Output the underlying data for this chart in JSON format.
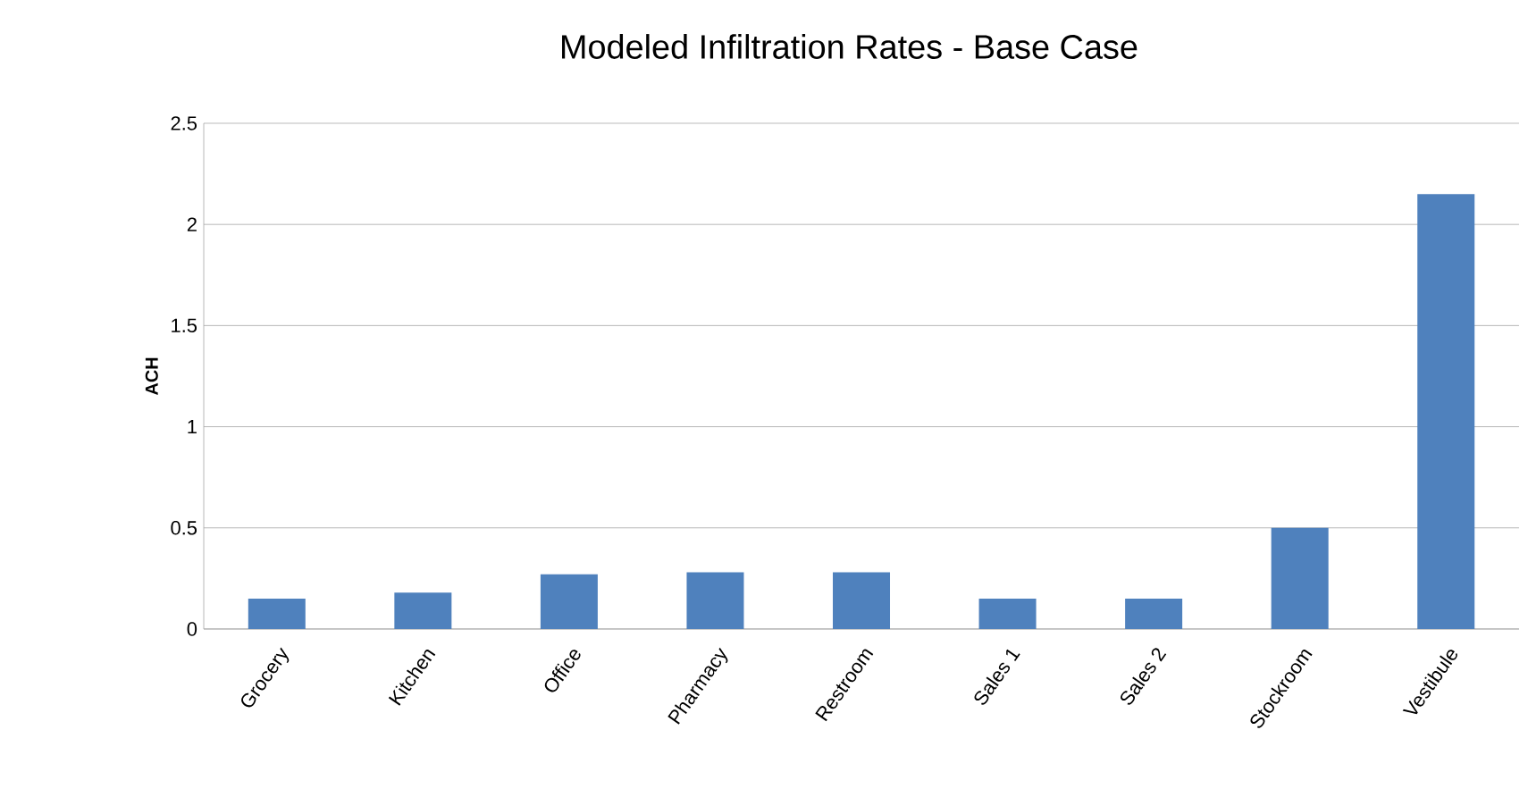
{
  "chart_data": {
    "type": "bar",
    "title": "Modeled Infiltration Rates - Base Case",
    "ylabel": "ACH",
    "categories": [
      "Grocery",
      "Kitchen",
      "Office",
      "Pharmacy",
      "Restroom",
      "Sales 1",
      "Sales 2",
      "Stockroom",
      "Vestibule"
    ],
    "values": [
      0.15,
      0.18,
      0.27,
      0.28,
      0.28,
      0.15,
      0.15,
      0.5,
      2.15
    ],
    "color": "#4f81bd",
    "ylim": [
      0,
      2.5
    ],
    "yticks": [
      0,
      0.5,
      1,
      1.5,
      2,
      2.5
    ],
    "grid": "y"
  }
}
